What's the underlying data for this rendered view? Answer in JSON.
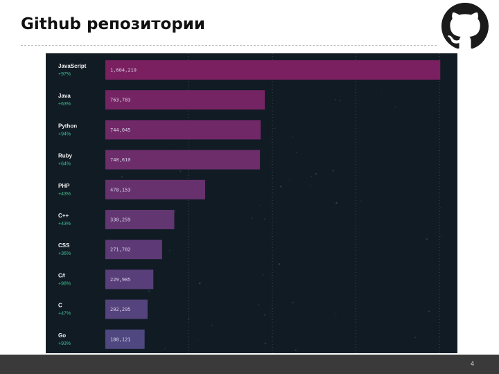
{
  "title": "Github репозитории",
  "page_number": "4",
  "logo_icon": "github-octocat-icon",
  "colors": {
    "panel_bg": "#111b24",
    "bar_top": "#7a1f5f",
    "bar_bottom": "#4f4880",
    "growth": "#3fbf8f"
  },
  "chart_data": {
    "type": "bar",
    "orientation": "horizontal",
    "title": "",
    "xlabel": "",
    "ylabel": "",
    "categories": [
      "JavaScript",
      "Java",
      "Python",
      "Ruby",
      "PHP",
      "C++",
      "CSS",
      "C#",
      "C",
      "Go"
    ],
    "growth": [
      "+97%",
      "+63%",
      "+94%",
      "+64%",
      "+43%",
      "+43%",
      "+36%",
      "+98%",
      "+47%",
      "+93%"
    ],
    "value_labels": [
      "1,604,219",
      "763,783",
      "744,045",
      "740,610",
      "478,153",
      "330,259",
      "271,782",
      "229,985",
      "202,295",
      "188,121"
    ],
    "values": [
      1604219,
      763783,
      744045,
      740610,
      478153,
      330259,
      271782,
      229985,
      202295,
      188121
    ],
    "xlim": [
      0,
      1600000
    ],
    "grid": true
  }
}
